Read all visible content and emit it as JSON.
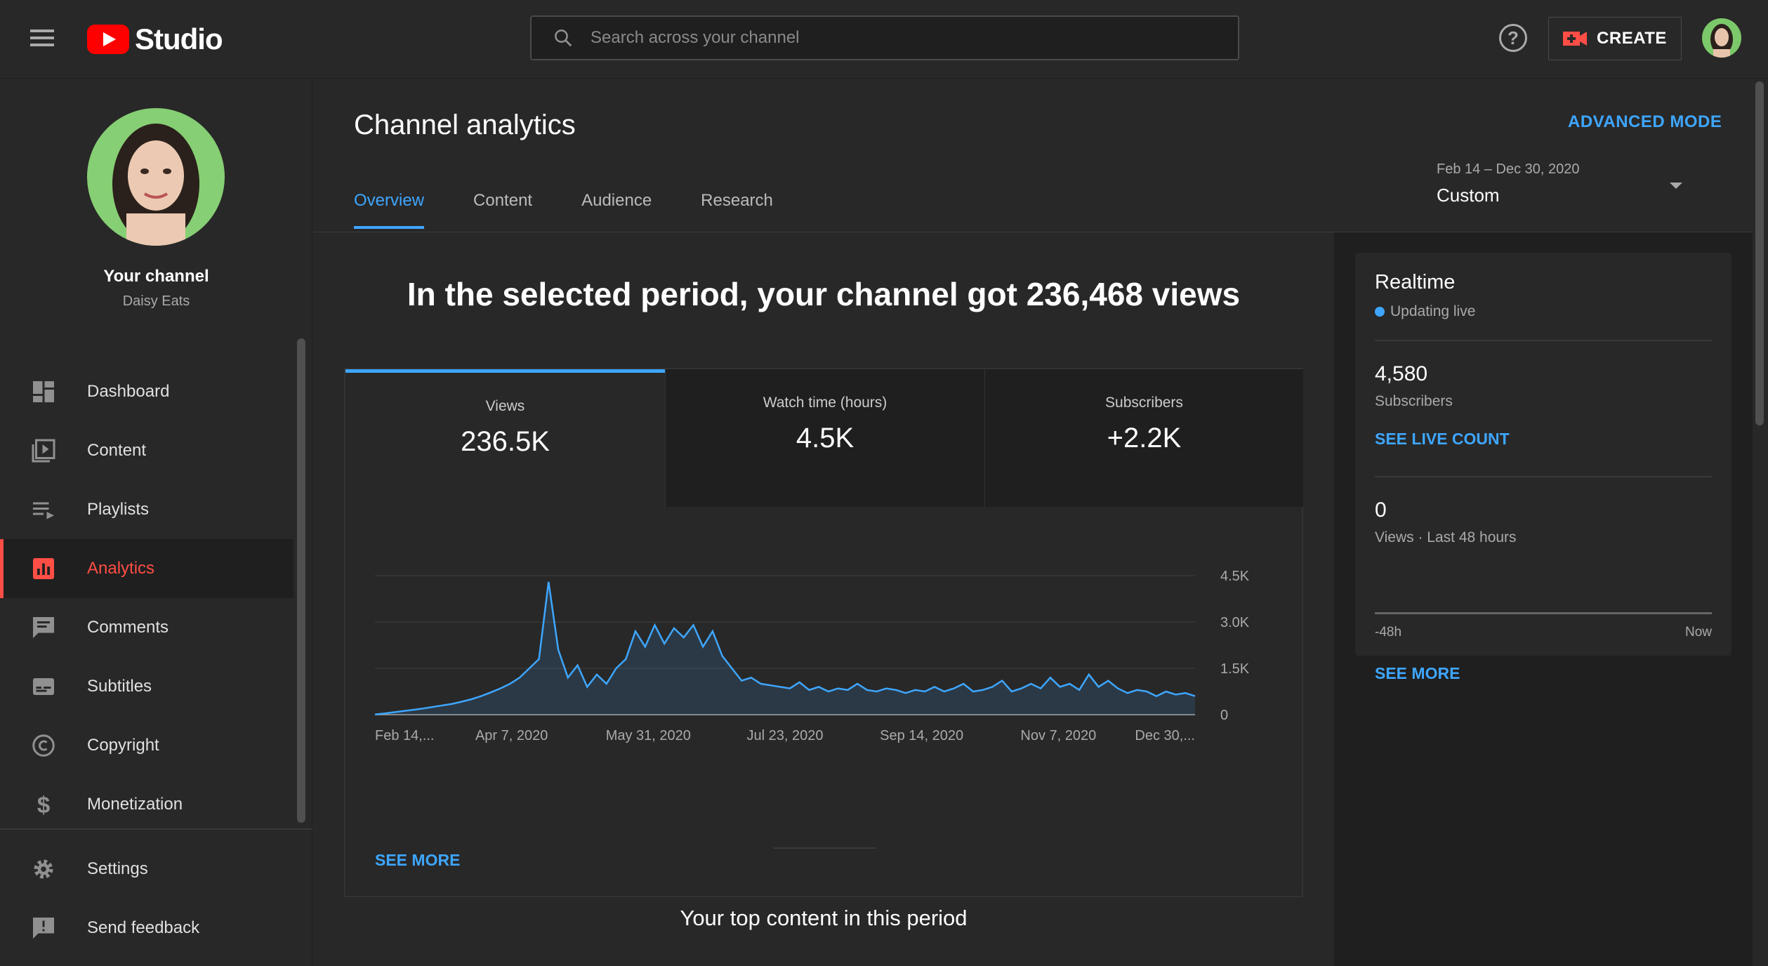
{
  "header": {
    "app_name": "Studio",
    "search_placeholder": "Search across your channel",
    "help_label": "?",
    "create_label": "CREATE"
  },
  "sidebar": {
    "channel_title": "Your channel",
    "channel_name": "Daisy Eats",
    "items": [
      {
        "label": "Dashboard",
        "icon": "dashboard-icon"
      },
      {
        "label": "Content",
        "icon": "content-icon"
      },
      {
        "label": "Playlists",
        "icon": "playlists-icon"
      },
      {
        "label": "Analytics",
        "icon": "analytics-icon",
        "active": true
      },
      {
        "label": "Comments",
        "icon": "comments-icon"
      },
      {
        "label": "Subtitles",
        "icon": "subtitles-icon"
      },
      {
        "label": "Copyright",
        "icon": "copyright-icon"
      },
      {
        "label": "Monetization",
        "icon": "monetization-icon"
      }
    ],
    "bottom_items": [
      {
        "label": "Settings",
        "icon": "settings-icon"
      },
      {
        "label": "Send feedback",
        "icon": "feedback-icon"
      }
    ]
  },
  "main": {
    "title": "Channel analytics",
    "advanced_mode": "ADVANCED MODE",
    "tabs": [
      {
        "label": "Overview",
        "active": true
      },
      {
        "label": "Content"
      },
      {
        "label": "Audience"
      },
      {
        "label": "Research"
      }
    ],
    "date_range": "Feb 14 – Dec 30, 2020",
    "date_selection": "Custom",
    "headline": "In the selected period, your channel got 236,468 views",
    "metrics": [
      {
        "label": "Views",
        "value": "236.5K",
        "active": true
      },
      {
        "label": "Watch time (hours)",
        "value": "4.5K"
      },
      {
        "label": "Subscribers",
        "value": "+2.2K"
      }
    ],
    "see_more": "SEE MORE",
    "top_content_title": "Your top content in this period"
  },
  "realtime": {
    "title": "Realtime",
    "status": "Updating live",
    "subscribers_value": "4,580",
    "subscribers_label": "Subscribers",
    "see_live_count": "SEE LIVE COUNT",
    "views_value": "0",
    "views_label": "Views · Last 48 hours",
    "axis_start": "-48h",
    "axis_end": "Now",
    "see_more": "SEE MORE"
  },
  "colors": {
    "accent": "#3ea6ff",
    "active_nav": "#ff4e45",
    "brand_red": "#ff0000",
    "background": "#282828",
    "panel": "#1f1f1f"
  },
  "chart_data": {
    "type": "area",
    "x_ticks": [
      "Feb 14,...",
      "Apr 7, 2020",
      "May 31, 2020",
      "Jul 23, 2020",
      "Sep 14, 2020",
      "Nov 7, 2020",
      "Dec 30,..."
    ],
    "y_ticks": [
      "0",
      "1.5K",
      "3.0K",
      "4.5K"
    ],
    "ylim": [
      0,
      4500
    ],
    "grid": true,
    "values": [
      5,
      40,
      80,
      120,
      160,
      200,
      250,
      300,
      350,
      420,
      500,
      600,
      720,
      850,
      1000,
      1200,
      1500,
      1800,
      4300,
      2100,
      1200,
      1600,
      900,
      1300,
      1000,
      1500,
      1800,
      2700,
      2200,
      2900,
      2300,
      2800,
      2500,
      2900,
      2200,
      2700,
      1900,
      1500,
      1100,
      1200,
      1000,
      950,
      900,
      850,
      1050,
      800,
      900,
      750,
      850,
      800,
      1000,
      800,
      750,
      850,
      800,
      700,
      800,
      750,
      900,
      750,
      850,
      1000,
      750,
      800,
      900,
      1100,
      750,
      850,
      1000,
      850,
      1200,
      900,
      1000,
      800,
      1300,
      900,
      1100,
      850,
      700,
      800,
      750,
      600,
      750,
      650,
      700,
      600
    ]
  }
}
